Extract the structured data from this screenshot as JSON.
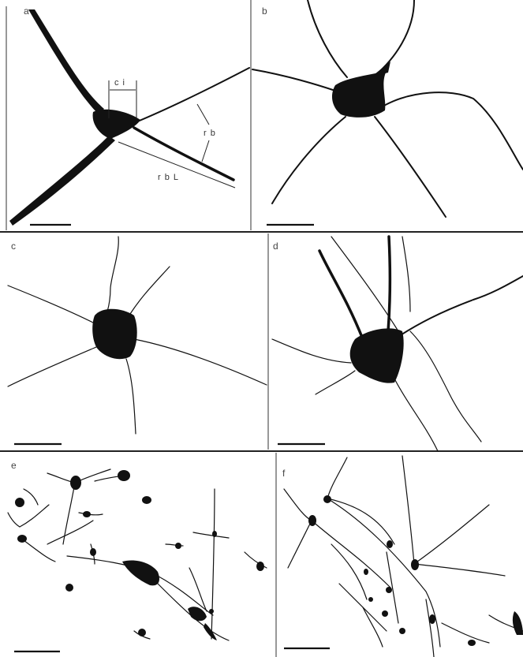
{
  "panels": {
    "a": {
      "label": "a",
      "ci": "c i",
      "rb": "r b",
      "rbl": "r b L"
    },
    "b": {
      "label": "b"
    },
    "c": {
      "label": "c"
    },
    "d": {
      "label": "d"
    },
    "e": {
      "label": "e"
    },
    "f": {
      "label": "f"
    }
  }
}
